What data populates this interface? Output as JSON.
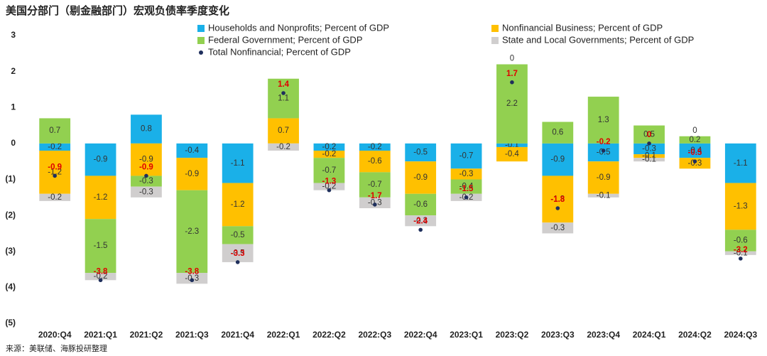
{
  "chart_data": {
    "type": "stacked_bar",
    "title": "美国分部门（剔金融部门）宏观负债率季度变化",
    "source": "来源：美联储、海豚投研整理",
    "categories": [
      "2020:Q4",
      "2021:Q1",
      "2021:Q2",
      "2021:Q3",
      "2021:Q4",
      "2022:Q1",
      "2022:Q2",
      "2022:Q3",
      "2022:Q4",
      "2023:Q1",
      "2023:Q2",
      "2023:Q3",
      "2023:Q4",
      "2024:Q1",
      "2024:Q2",
      "2024:Q3"
    ],
    "series": [
      {
        "name": "Households and Nonprofits; Percent of GDP",
        "color": "#1ab0e8",
        "values": [
          -0.2,
          -0.9,
          0.8,
          -0.4,
          -1.1,
          0,
          -0.2,
          -0.2,
          -0.5,
          -0.7,
          -0.1,
          -0.9,
          -0.5,
          -0.3,
          -0.4,
          -1.1
        ]
      },
      {
        "name": "Nonfinancial Business; Percent of GDP",
        "color": "#ffc000",
        "values": [
          -1.2,
          -1.2,
          -0.9,
          -0.9,
          -1.2,
          0.7,
          -0.2,
          -0.6,
          -0.9,
          -0.3,
          -0.4,
          -1.3,
          -0.9,
          -0.1,
          -0.3,
          -1.3
        ]
      },
      {
        "name": "Federal Government; Percent of GDP",
        "color": "#92d050",
        "values": [
          0.7,
          -1.5,
          -0.3,
          -2.3,
          -0.5,
          1.1,
          -0.7,
          -0.7,
          -0.6,
          -0.4,
          2.2,
          0.6,
          1.3,
          0.5,
          0.2,
          -0.6
        ]
      },
      {
        "name": "State and Local Governments; Percent of GDP",
        "color": "#d0cece",
        "values": [
          -0.2,
          -0.2,
          -0.3,
          -0.3,
          -0.5,
          -0.2,
          -0.2,
          -0.3,
          -0.3,
          -0.2,
          0,
          -0.3,
          -0.1,
          -0.1,
          0,
          -0.1
        ]
      }
    ],
    "total": {
      "name": "Total Nonfinancial; Percent of GDP",
      "color": "#1f2f5c",
      "label_color": "#e00000",
      "values": [
        -0.9,
        -3.8,
        -0.9,
        -3.8,
        -3.3,
        1.4,
        -1.3,
        -1.7,
        -2.4,
        -1.5,
        1.7,
        -1.8,
        -0.2,
        0,
        -0.5,
        -3.2
      ]
    },
    "ylim": [
      -5,
      3
    ],
    "yticks": [
      3,
      2,
      1,
      0,
      {
        "value": -1,
        "label": "(1)"
      },
      {
        "value": -2,
        "label": "(2)"
      },
      {
        "value": -3,
        "label": "(3)"
      },
      {
        "value": -4,
        "label": "(4)"
      },
      {
        "value": -5,
        "label": "(5)"
      }
    ],
    "grid": false
  }
}
